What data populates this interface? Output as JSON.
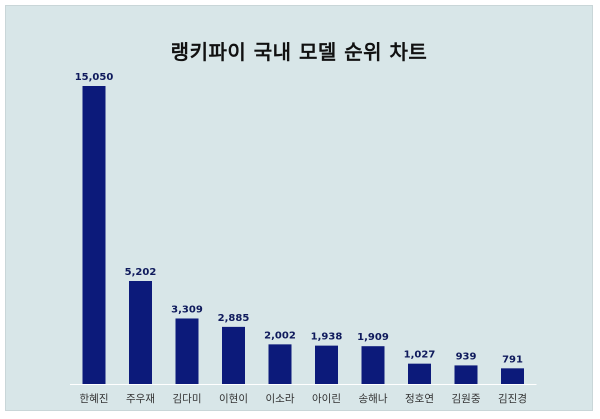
{
  "chart_data": {
    "type": "bar",
    "title": "랭키파이 국내 모델 순위 차트",
    "categories": [
      "한혜진",
      "주우재",
      "김다미",
      "이현이",
      "이소라",
      "아이린",
      "송해나",
      "정호연",
      "김원중",
      "김진경"
    ],
    "values": [
      15050,
      5202,
      3309,
      2885,
      2002,
      1938,
      1909,
      1027,
      939,
      791
    ],
    "value_labels": [
      "15,050",
      "5,202",
      "3,309",
      "2,885",
      "2,002",
      "1,938",
      "1,909",
      "1,027",
      "939",
      "791"
    ],
    "xlabel": "",
    "ylabel": "",
    "ylim": [
      0,
      15050
    ],
    "grid": false,
    "bar_color": "#0c1a7a",
    "background_color": "#d8e6e8"
  }
}
